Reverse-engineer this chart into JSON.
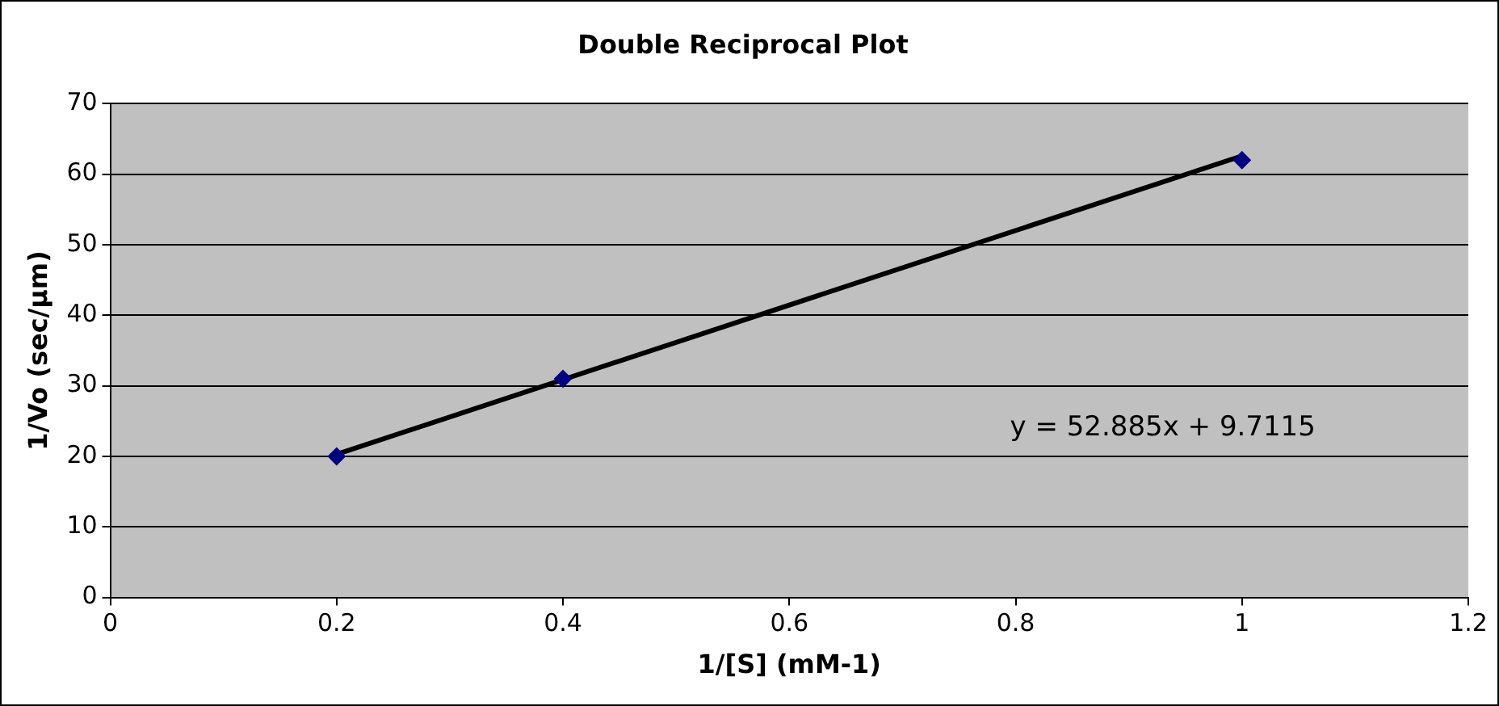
{
  "chart_data": {
    "type": "scatter",
    "title": "Double Reciprocal Plot",
    "xlabel": "1/[S] (mM-1)",
    "ylabel": "1/Vo (sec/µm)",
    "x": [
      0.2,
      0.4,
      1
    ],
    "series": [
      {
        "color": "#000080",
        "marker": "diamond",
        "values": [
          20,
          31,
          62
        ]
      },
      {
        "type": "line",
        "color": "#000000",
        "marker": "none",
        "x": [
          0.2,
          1
        ],
        "values": [
          20.3,
          62.6
        ]
      }
    ],
    "xlim": [
      0,
      1.2
    ],
    "xticks": [
      0,
      0.2,
      0.4,
      0.6,
      0.8,
      1,
      1.2
    ],
    "ylim": [
      0,
      70
    ],
    "yticks": [
      0,
      10,
      20,
      30,
      40,
      50,
      60,
      70
    ],
    "grid": "y",
    "legend": false,
    "annotations": [
      "y = 52.885x + 9.7115"
    ]
  }
}
